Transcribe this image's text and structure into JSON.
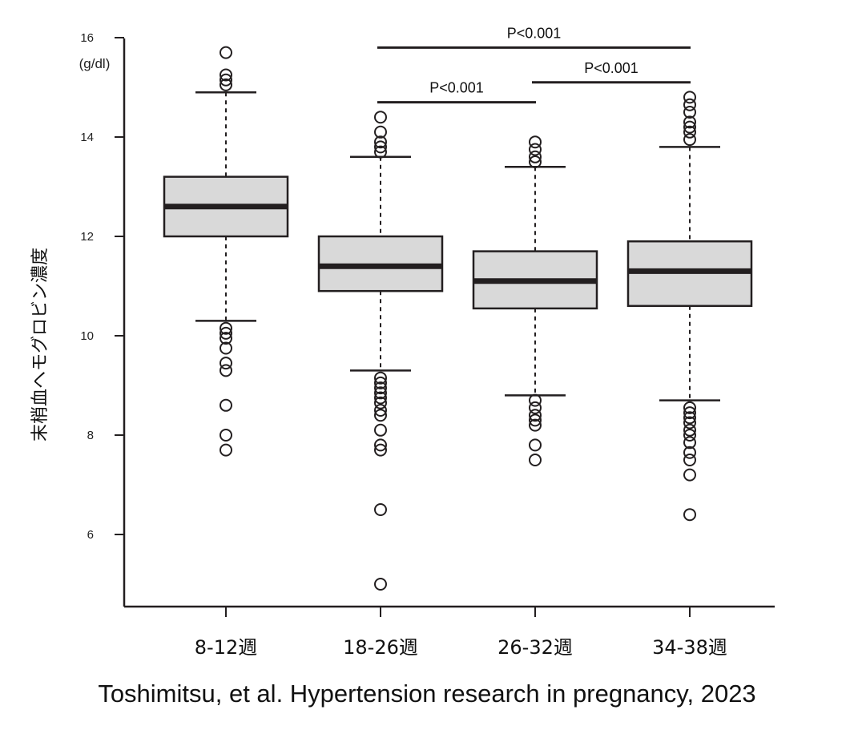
{
  "chart_data": {
    "type": "box",
    "ylabel": "末梢血ヘモグロビン濃度",
    "y_unit": "(g/dl)",
    "ylim": [
      5,
      16
    ],
    "yticks": [
      6,
      8,
      10,
      12,
      14,
      16
    ],
    "categories": [
      "8-12週",
      "18-26週",
      "26-32週",
      "34-38週"
    ],
    "boxes": [
      {
        "category": "8-12週",
        "whisker_low": 10.3,
        "q1": 12.0,
        "median": 12.6,
        "q3": 13.2,
        "whisker_high": 14.9,
        "outliers": [
          15.7,
          15.25,
          15.15,
          15.05,
          10.15,
          10.05,
          9.95,
          9.75,
          9.45,
          9.3,
          8.6,
          8.0,
          7.7
        ]
      },
      {
        "category": "18-26週",
        "whisker_low": 9.3,
        "q1": 10.9,
        "median": 11.4,
        "q3": 12.0,
        "whisker_high": 13.6,
        "outliers": [
          14.4,
          14.1,
          13.9,
          13.8,
          13.7,
          9.15,
          9.05,
          8.95,
          8.85,
          8.75,
          8.65,
          8.5,
          8.4,
          8.1,
          7.8,
          7.7,
          6.5,
          5.0
        ]
      },
      {
        "category": "26-32週",
        "whisker_low": 8.8,
        "q1": 10.55,
        "median": 11.1,
        "q3": 11.7,
        "whisker_high": 13.4,
        "outliers": [
          13.9,
          13.75,
          13.6,
          13.5,
          8.7,
          8.55,
          8.4,
          8.3,
          8.2,
          7.8,
          7.5
        ]
      },
      {
        "category": "34-38週",
        "whisker_low": 8.7,
        "q1": 10.6,
        "median": 11.3,
        "q3": 11.9,
        "whisker_high": 13.8,
        "outliers": [
          14.8,
          14.65,
          14.5,
          14.3,
          14.2,
          14.1,
          13.95,
          8.55,
          8.45,
          8.35,
          8.25,
          8.1,
          8.0,
          7.85,
          7.65,
          7.5,
          7.2,
          6.4
        ]
      }
    ],
    "annotations": [
      {
        "from": "18-26週",
        "to": "26-32週",
        "y": 14.7,
        "text": "P<0.001"
      },
      {
        "from": "26-32週",
        "to": "34-38週",
        "y": 15.1,
        "text": "P<0.001"
      },
      {
        "from": "18-26週",
        "to": "34-38週",
        "y": 15.8,
        "text": "P<0.001"
      }
    ],
    "colors": {
      "box_fill": "#d9d9d9",
      "stroke": "#231f20"
    }
  },
  "citation": "Toshimitsu, et al. Hypertension research in pregnancy, 2023"
}
